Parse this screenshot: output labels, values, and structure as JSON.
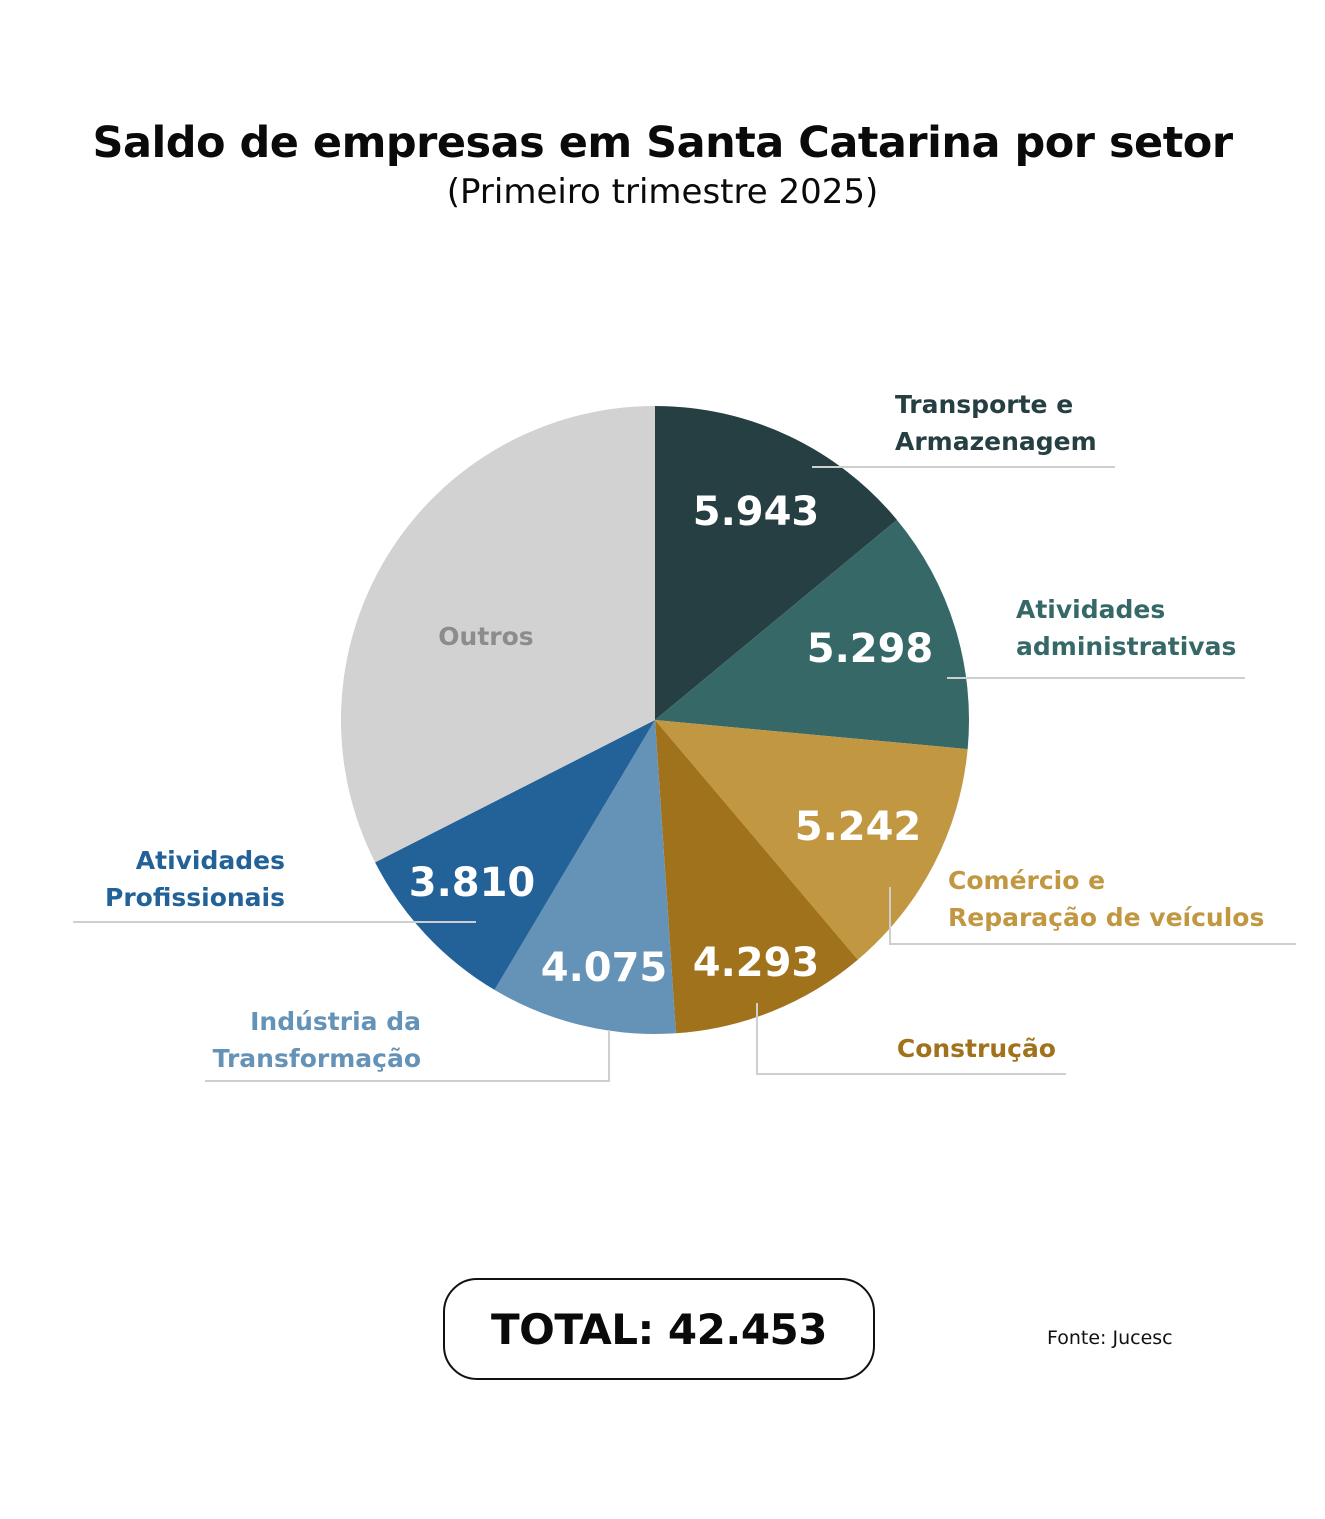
{
  "chart_data": {
    "type": "pie",
    "title": "Saldo de empresas em Santa Catarina por setor",
    "subtitle": "(Primeiro trimestre 2025)",
    "slices": [
      {
        "name": "Transporte e Armazenagem",
        "label_lines": [
          "Transporte e",
          "Armazenagem"
        ],
        "value": 5943,
        "value_label": "5.943",
        "color": "#263f43",
        "label_color": "#263f43"
      },
      {
        "name": "Atividades administrativas",
        "label_lines": [
          "Atividades",
          "administrativas"
        ],
        "value": 5298,
        "value_label": "5.298",
        "color": "#376868",
        "label_color": "#376868"
      },
      {
        "name": "Comércio e Reparação de veículos",
        "label_lines": [
          "Comércio e",
          "Reparação de veículos"
        ],
        "value": 5242,
        "value_label": "5.242",
        "color": "#c19742",
        "label_color": "#c19742"
      },
      {
        "name": "Construção",
        "label_lines": [
          "Construção"
        ],
        "value": 4293,
        "value_label": "4.293",
        "color": "#a1721c",
        "label_color": "#a1721c"
      },
      {
        "name": "Indústria da Transformação",
        "label_lines": [
          "Indústria da",
          "Transformação"
        ],
        "value": 4075,
        "value_label": "4.075",
        "color": "#6493b7",
        "label_color": "#6493b7"
      },
      {
        "name": "Atividades Profissionais",
        "label_lines": [
          "Atividades",
          "Profissionais"
        ],
        "value": 3810,
        "value_label": "3.810",
        "color": "#226299",
        "label_color": "#226299"
      },
      {
        "name": "Outros",
        "label_lines": [
          "Outros"
        ],
        "value": 13792,
        "value_label": "",
        "color": "#d2d2d2",
        "label_color": "#8c8c8c"
      }
    ],
    "total_label": "TOTAL: 42.453",
    "total": 42453,
    "source": "Fonte: Jucesc"
  }
}
